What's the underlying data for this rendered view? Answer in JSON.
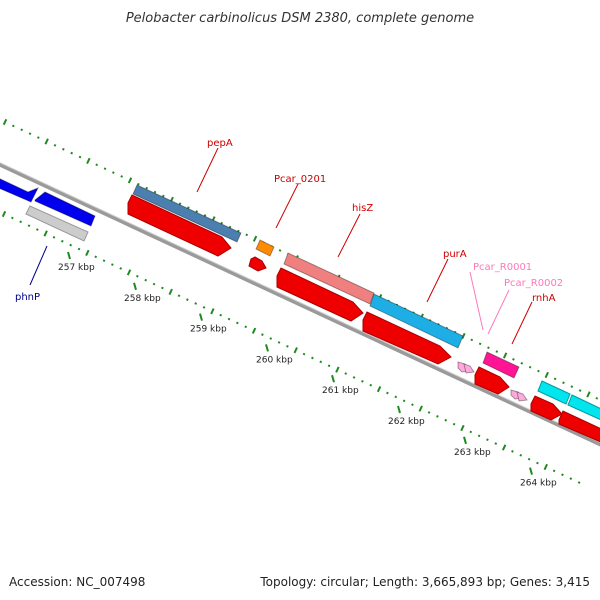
{
  "title": "Pelobacter carbinolicus DSM 2380, complete genome",
  "footer": {
    "accession": "Accession: NC_007498",
    "summary": "Topology: circular; Length: 3,665,893 bp; Genes: 3,415"
  },
  "colors": {
    "backbone": "#8a8a8a",
    "tick": "#1f8a1f",
    "cds": "#ee0000",
    "label_red": "#cc0000",
    "label_blue": "#00008b",
    "label_pink": "#ff77bb"
  },
  "ticks": [
    {
      "label": "257 kbp"
    },
    {
      "label": "258 kbp"
    },
    {
      "label": "259 kbp"
    },
    {
      "label": "260 kbp"
    },
    {
      "label": "261 kbp"
    },
    {
      "label": "262 kbp"
    },
    {
      "label": "263 kbp"
    },
    {
      "label": "264 kbp"
    }
  ],
  "features": [
    {
      "name": "phnP",
      "color": "#0000ee"
    },
    {
      "name": "pepA",
      "color": "#4a7fb0"
    },
    {
      "name": "Pcar_0201",
      "color": "#ff8c00"
    },
    {
      "name": "hisZ",
      "color": "#f08080"
    },
    {
      "name": "purA",
      "color": "#1eaee6"
    },
    {
      "name": "Pcar_R0001",
      "color": "#ffaadd"
    },
    {
      "name": "Pcar_R0002",
      "color": "#ffaadd"
    },
    {
      "name": "rnhA",
      "color": "#ff1493"
    }
  ]
}
